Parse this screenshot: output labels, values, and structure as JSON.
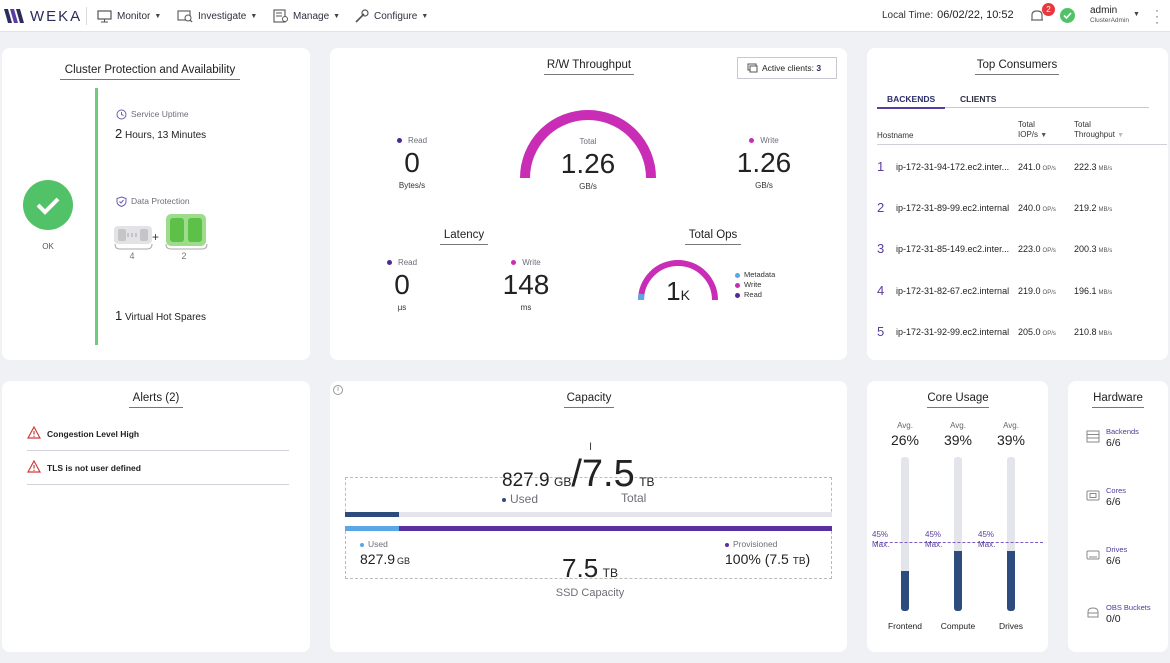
{
  "app": {
    "logo_text": "WEKA"
  },
  "nav": {
    "items": [
      {
        "label": "Monitor",
        "icon": "monitor-icon"
      },
      {
        "label": "Investigate",
        "icon": "investigate-icon"
      },
      {
        "label": "Manage",
        "icon": "manage-icon"
      },
      {
        "label": "Configure",
        "icon": "configure-icon"
      }
    ],
    "local_time_label": "Local Time:",
    "local_time_value": "06/02/22, 10:52",
    "notifications_count": "2",
    "user_name": "admin",
    "user_role": "ClusterAdmin"
  },
  "protection": {
    "title": "Cluster Protection and Availability",
    "status": "OK",
    "uptime_label": "Service Uptime",
    "uptime_num": "2",
    "uptime_text": "Hours, 13 Minutes",
    "data_protection_label": "Data Protection",
    "data_drives": "4",
    "parity_drives": "2",
    "plus": "+",
    "hot_spares_num": "1",
    "hot_spares_text": "Virtual Hot Spares"
  },
  "throughput": {
    "title": "R/W Throughput",
    "active_clients_label": "Active clients:",
    "active_clients_value": "3",
    "read_label": "Read",
    "read_value": "0",
    "read_unit": "Bytes/s",
    "total_label": "Total",
    "total_value": "1.26",
    "total_unit": "GB/s",
    "write_label": "Write",
    "write_value": "1.26",
    "write_unit": "GB/s",
    "gauge_fill_fraction": 1.0
  },
  "latency": {
    "title": "Latency",
    "read_label": "Read",
    "read_value": "0",
    "read_unit": "µs",
    "write_label": "Write",
    "write_value": "148",
    "write_unit": "ms"
  },
  "total_ops": {
    "title": "Total Ops",
    "value": "1",
    "unit": "K",
    "legend": [
      "Metadata",
      "Write",
      "Read"
    ]
  },
  "top_consumers": {
    "title": "Top Consumers",
    "tabs": [
      "BACKENDS",
      "CLIENTS"
    ],
    "col_host": "Hostname",
    "col_iops_1": "Total",
    "col_iops_2": "IOP/s",
    "col_tp_1": "Total",
    "col_tp_2": "Throughput",
    "iops_unit": "OP/s",
    "tp_unit": "MB/s",
    "rows": [
      {
        "rank": "1",
        "host": "ip-172-31-94-172.ec2.inter...",
        "iops": "241.0",
        "tp": "222.3"
      },
      {
        "rank": "2",
        "host": "ip-172-31-89-99.ec2.internal",
        "iops": "240.0",
        "tp": "219.2"
      },
      {
        "rank": "3",
        "host": "ip-172-31-85-149.ec2.inter...",
        "iops": "223.0",
        "tp": "200.3"
      },
      {
        "rank": "4",
        "host": "ip-172-31-82-67.ec2.internal",
        "iops": "219.0",
        "tp": "196.1"
      },
      {
        "rank": "5",
        "host": "ip-172-31-92-99.ec2.internal",
        "iops": "205.0",
        "tp": "210.8"
      }
    ]
  },
  "alerts": {
    "title": "Alerts (2)",
    "items": [
      "Congestion Level High",
      "TLS is not user defined"
    ]
  },
  "capacity": {
    "title": "Capacity",
    "used_value": "827.9",
    "used_unit": "GB",
    "total_value": "/7.5",
    "total_unit": "TB",
    "used_label": "Used",
    "total_label": "Total",
    "used_fraction": 0.11,
    "ssd_used_label": "Used",
    "ssd_used_value": "827.9",
    "ssd_used_unit": "GB",
    "ssd_value": "7.5",
    "ssd_unit": "TB",
    "ssd_label": "SSD Capacity",
    "provisioned_label": "Provisioned",
    "provisioned_value": "100% (7.5",
    "provisioned_unit": "TB",
    "provisioned_close": ")",
    "info_glyph": "i",
    "cursor_glyph": "I"
  },
  "core_usage": {
    "title": "Core Usage",
    "avg_label": "Avg.",
    "max_label_1": "45%",
    "max_label_2": "Max.",
    "cores": [
      {
        "name": "Frontend",
        "avg": "26%",
        "level": 0.26
      },
      {
        "name": "Compute",
        "avg": "39%",
        "level": 0.39
      },
      {
        "name": "Drives",
        "avg": "39%",
        "level": 0.39
      }
    ],
    "max_level": 0.45
  },
  "hardware": {
    "title": "Hardware",
    "items": [
      {
        "label": "Backends",
        "value": "6/6",
        "icon": "server-icon"
      },
      {
        "label": "Cores",
        "value": "6/6",
        "icon": "cpu-icon"
      },
      {
        "label": "Drives",
        "value": "6/6",
        "icon": "drive-icon"
      },
      {
        "label": "OBS Buckets",
        "value": "0/0",
        "icon": "bucket-icon"
      }
    ]
  },
  "colors": {
    "accent_purple": "#5a3da0",
    "gauge_magenta": "#c92db5",
    "ok_green": "#52c268",
    "navy": "#2d4b7d",
    "light_blue": "#5aa6e6"
  }
}
